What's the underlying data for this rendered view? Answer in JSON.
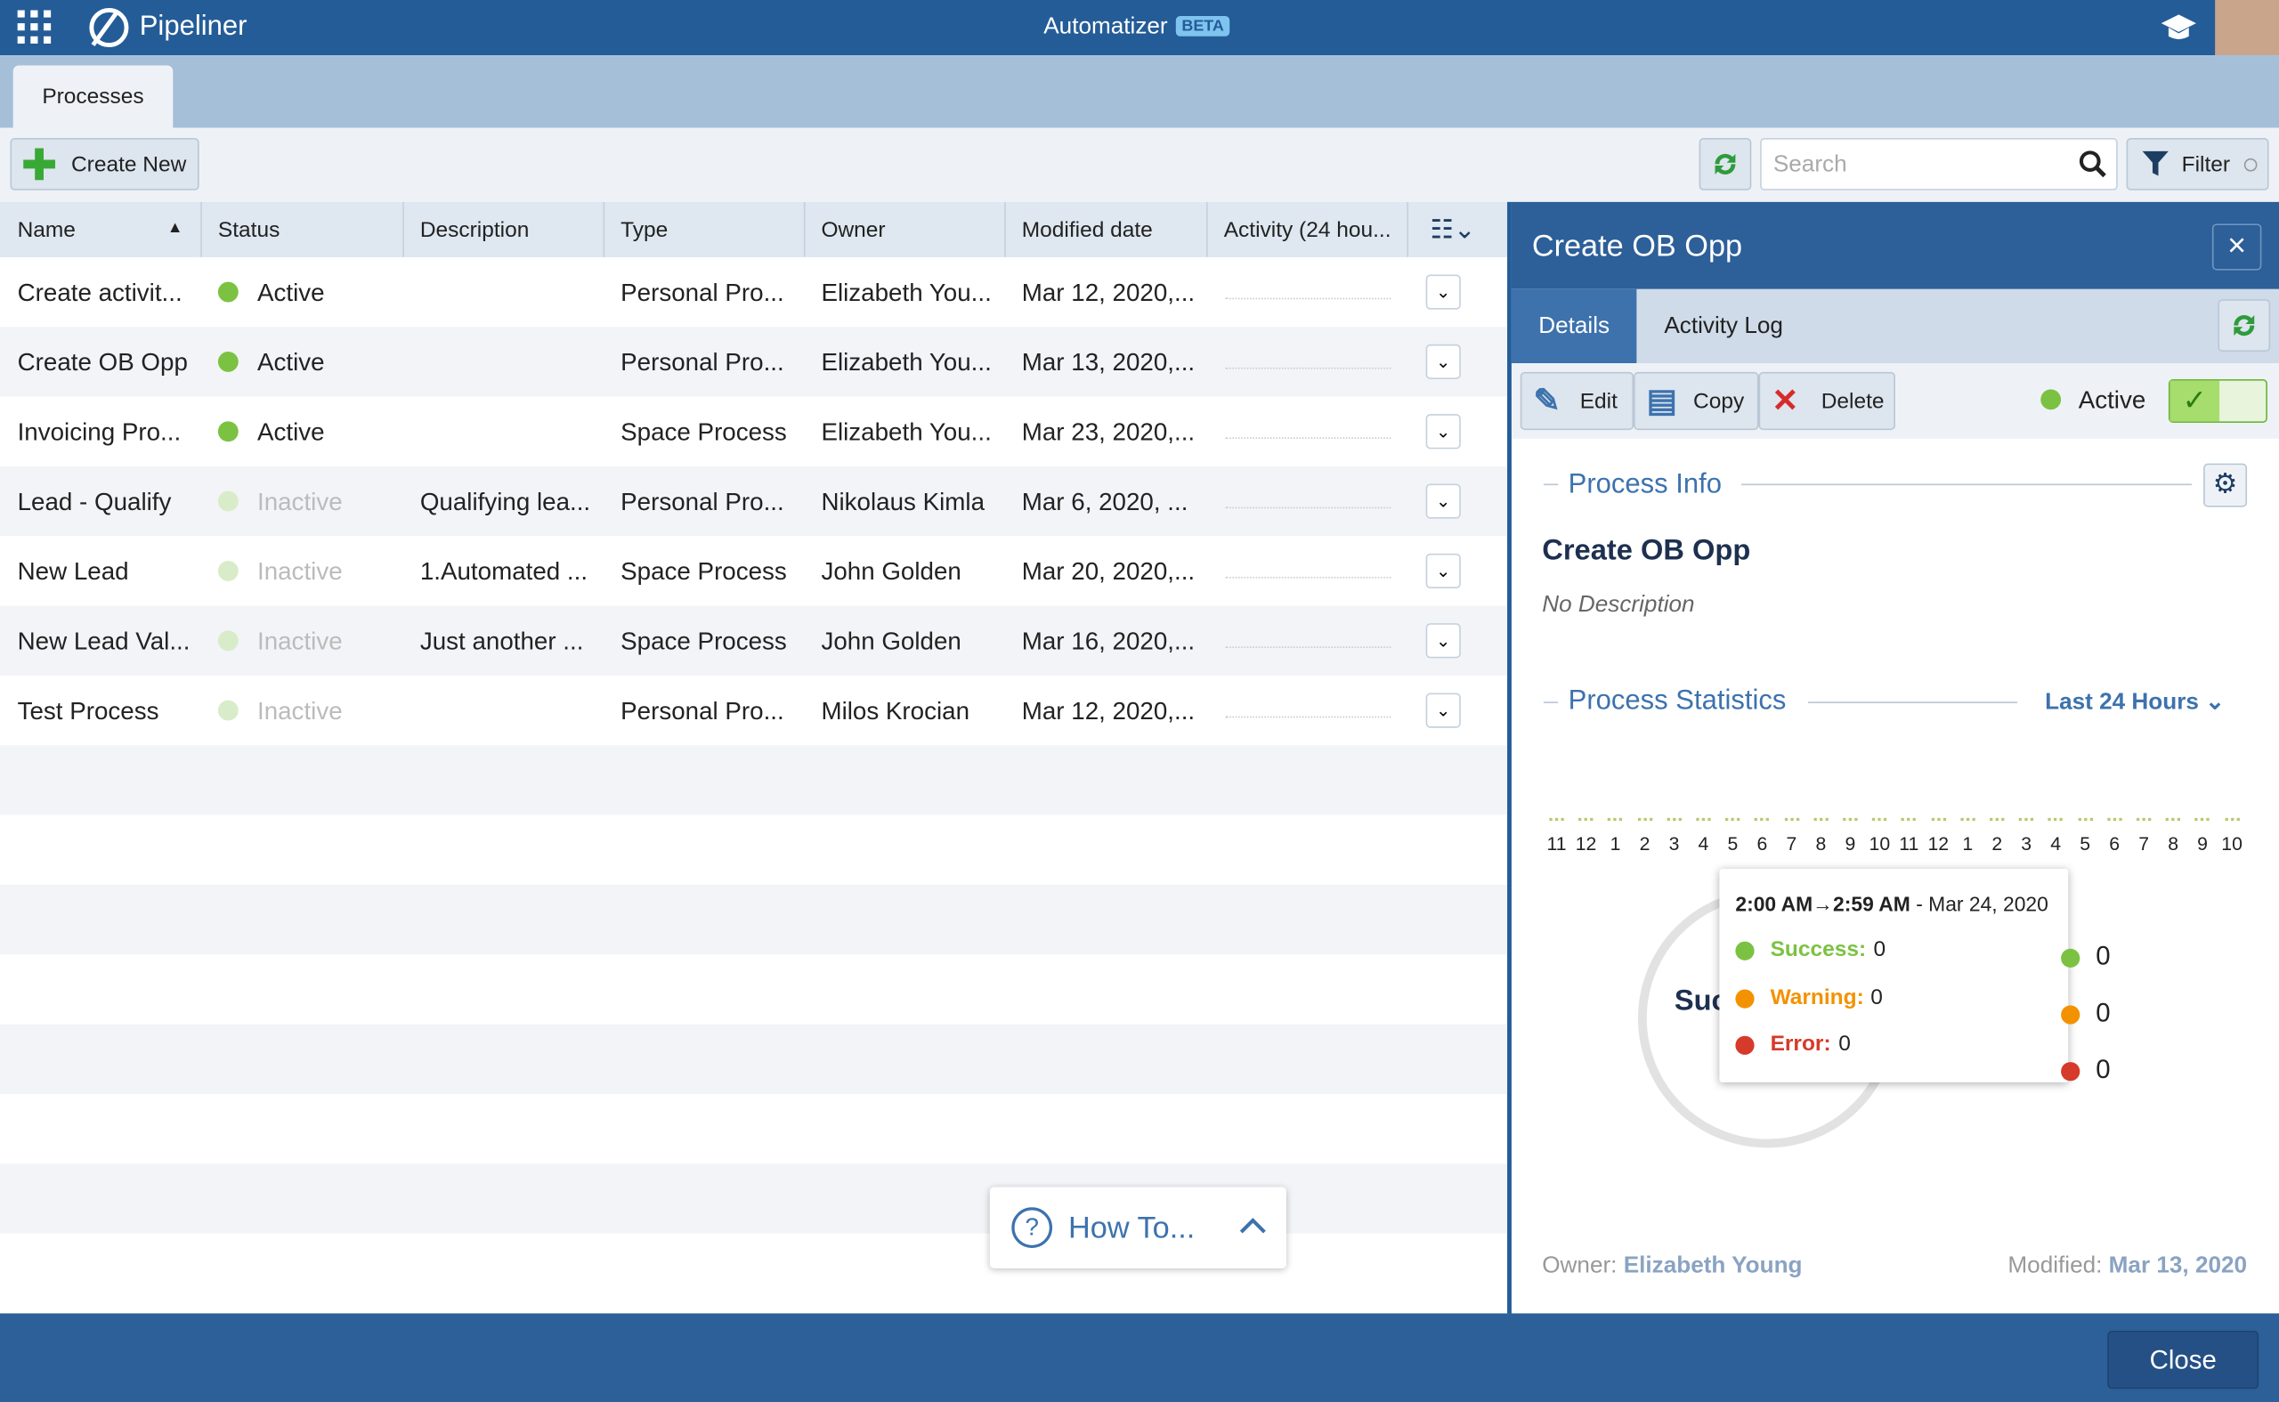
{
  "header": {
    "brand": "Pipeliner",
    "app": "Automatizer",
    "badge": "BETA"
  },
  "tabs": {
    "active": "Processes"
  },
  "toolbar": {
    "create": "Create New",
    "search_placeholder": "Search",
    "filter": "Filter"
  },
  "table": {
    "columns": [
      "Name",
      "Status",
      "Description",
      "Type",
      "Owner",
      "Modified date",
      "Activity (24 hou..."
    ],
    "rows": [
      [
        "Create activit...",
        "Active",
        "",
        "Personal Pro...",
        "Elizabeth You...",
        "Mar 12, 2020,..."
      ],
      [
        "Create OB Opp",
        "Active",
        "",
        "Personal Pro...",
        "Elizabeth You...",
        "Mar 13, 2020,..."
      ],
      [
        "Invoicing Pro...",
        "Active",
        "",
        "Space Process",
        "Elizabeth You...",
        "Mar 23, 2020,..."
      ],
      [
        "Lead - Qualify",
        "Inactive",
        "Qualifying lea...",
        "Personal Pro...",
        "Nikolaus Kimla",
        "Mar 6, 2020, ..."
      ],
      [
        "New Lead",
        "Inactive",
        "1.Automated ...",
        "Space Process",
        "John Golden",
        "Mar 20, 2020,..."
      ],
      [
        "New Lead Val...",
        "Inactive",
        "Just another ...",
        "Space Process",
        "John Golden",
        "Mar 16, 2020,..."
      ],
      [
        "Test Process",
        "Inactive",
        "",
        "Personal Pro...",
        "Milos Krocian",
        "Mar 12, 2020,..."
      ]
    ]
  },
  "panel": {
    "title": "Create OB Opp",
    "tabs": [
      "Details",
      "Activity Log"
    ],
    "actions": [
      "Edit",
      "Copy",
      "Delete"
    ],
    "status": "Active",
    "info_heading": "Process Info",
    "name": "Create OB Opp",
    "description": "No Description",
    "stats_heading": "Process Statistics",
    "range": "Last 24 Hours",
    "hours": [
      11,
      12,
      1,
      2,
      3,
      4,
      5,
      6,
      7,
      8,
      9,
      10,
      11,
      12,
      1,
      2,
      3,
      4,
      5,
      6,
      7,
      8,
      9,
      10
    ],
    "donut_label": "Suc",
    "legend_values": [
      0,
      0,
      0
    ],
    "tooltip": {
      "time": "2:00 AM→2:59 AM",
      "date": "- Mar 24, 2020",
      "items": [
        {
          "label": "Success:",
          "value": 0
        },
        {
          "label": "Warning:",
          "value": 0
        },
        {
          "label": "Error:",
          "value": 0
        }
      ]
    },
    "owner_label": "Owner:",
    "owner": "Elizabeth Young",
    "modified_label": "Modified:",
    "modified": "Mar 13, 2020"
  },
  "howto": "How To...",
  "footer": {
    "close": "Close"
  }
}
